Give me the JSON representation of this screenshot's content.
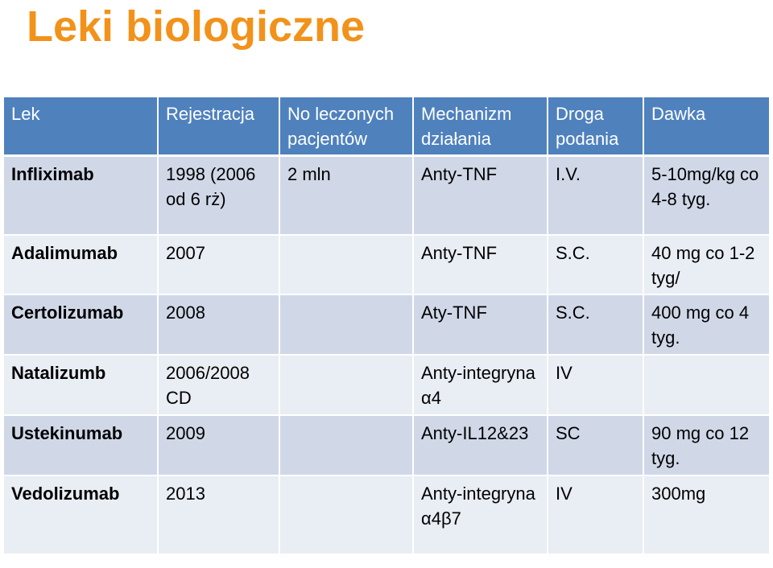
{
  "title": "Leki biologiczne",
  "colors": {
    "title": "#f2921a",
    "header_bg": "#4f81bd",
    "header_text": "#ffffff",
    "row_dark": "#d0d8e8",
    "row_light": "#e9edf4"
  },
  "table": {
    "headers": [
      "Lek",
      "Rejestracja",
      "No leczonych pacjentów",
      "Mechanizm działania",
      "Droga podania",
      "Dawka"
    ],
    "rows": [
      [
        "Infliximab",
        "1998 (2006  od 6 rż)",
        "2 mln",
        "Anty-TNF",
        "I.V.",
        "5-10mg/kg co 4-8 tyg."
      ],
      [
        "Adalimumab",
        "2007",
        "",
        "Anty-TNF",
        "S.C.",
        "40 mg co 1-2 tyg/"
      ],
      [
        "Certolizumab",
        "2008",
        "",
        "Aty-TNF",
        "S.C.",
        "400 mg co 4 tyg."
      ],
      [
        "Natalizumb",
        "2006/2008 CD",
        "",
        "Anty-integryna α4",
        "IV",
        ""
      ],
      [
        "Ustekinumab",
        "2009",
        "",
        "Anty-IL12&23",
        "SC",
        "90 mg co 12 tyg."
      ],
      [
        "Vedolizumab",
        "2013",
        "",
        "Anty-integryna α4β7",
        "IV",
        "300mg"
      ]
    ]
  }
}
